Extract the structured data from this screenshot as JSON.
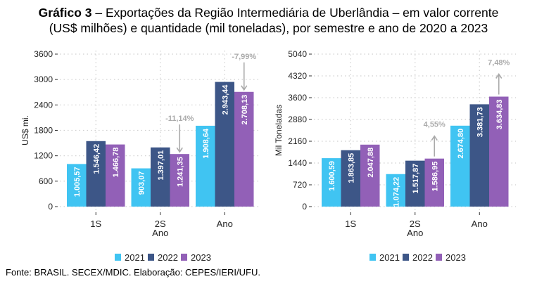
{
  "title": {
    "bold": "Gráfico 3",
    "rest_line1": " – Exportações da Região Intermediária de Uberlândia – em valor corrente",
    "line2": "(US$ milhões) e quantidade (mil toneladas), por semestre e ano de 2020 a 2023"
  },
  "source": "Fonte: BRASIL. SECEX/MDIC. Elaboração: CEPES/IERI/UFU.",
  "colors": {
    "2021": "#40c4f2",
    "2022": "#3d5687",
    "2023": "#9260b7",
    "annotation": "#aaaaaa"
  },
  "chart_data": [
    {
      "type": "bar",
      "title": "",
      "xlabel": "Ano",
      "ylabel": "US$ mi.",
      "categories": [
        "1S",
        "2S",
        "Ano"
      ],
      "ylim": [
        0,
        3600
      ],
      "yticks": [
        0,
        600,
        1200,
        1800,
        2400,
        3000,
        3600
      ],
      "grid": true,
      "legend": "bottom",
      "series": [
        {
          "name": "2021",
          "values": [
            1005.57,
            903.07,
            1908.64
          ],
          "labels": [
            "1.005,57",
            "903,07",
            "1.908,64"
          ]
        },
        {
          "name": "2022",
          "values": [
            1546.42,
            1397.01,
            2943.44
          ],
          "labels": [
            "1.546,42",
            "1.397,01",
            "2.943,44"
          ]
        },
        {
          "name": "2023",
          "values": [
            1466.78,
            1241.35,
            2708.13
          ],
          "labels": [
            "1.466,78",
            "1.241,35",
            "2.708,13"
          ]
        }
      ],
      "annotations": [
        {
          "category": "2S",
          "text": "-11,14%",
          "direction": "down"
        },
        {
          "category": "Ano",
          "text": "-7,99%",
          "direction": "down"
        }
      ]
    },
    {
      "type": "bar",
      "title": "",
      "xlabel": "Ano",
      "ylabel": "Mil Toneladas",
      "categories": [
        "1S",
        "2S",
        "Ano"
      ],
      "ylim": [
        0,
        5040
      ],
      "yticks": [
        0,
        720,
        1440,
        2160,
        2880,
        3600,
        4320,
        5040
      ],
      "grid": true,
      "legend": "bottom",
      "series": [
        {
          "name": "2021",
          "values": [
            1600.59,
            1074.22,
            2674.8
          ],
          "labels": [
            "1.600,59",
            "1.074,22",
            "2.674,80"
          ]
        },
        {
          "name": "2022",
          "values": [
            1863.85,
            1517.87,
            3381.73
          ],
          "labels": [
            "1.863,85",
            "1.517,87",
            "3.381,73"
          ]
        },
        {
          "name": "2023",
          "values": [
            2047.88,
            1586.95,
            3634.83
          ],
          "labels": [
            "2.047,88",
            "1.586,95",
            "3.634,83"
          ]
        }
      ],
      "annotations": [
        {
          "category": "2S",
          "text": "4,55%",
          "direction": "up"
        },
        {
          "category": "Ano",
          "text": "7,48%",
          "direction": "up"
        }
      ]
    }
  ]
}
